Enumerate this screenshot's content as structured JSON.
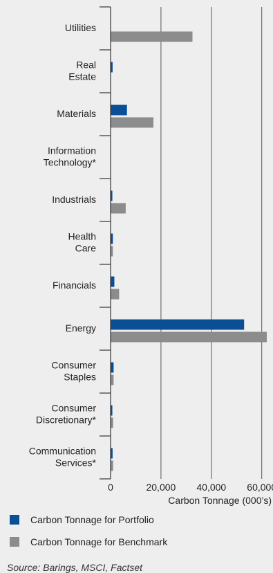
{
  "chart_data": {
    "type": "bar",
    "orientation": "horizontal",
    "categories": [
      "Utilities",
      "Real Estate",
      "Materials",
      "Information Technology*",
      "Industrials",
      "Health Care",
      "Financials",
      "Energy",
      "Consumer Staples",
      "Consumer Discretionary*",
      "Communication Services*"
    ],
    "category_lines": [
      [
        "Utilities"
      ],
      [
        "Real",
        "Estate"
      ],
      [
        "Materials"
      ],
      [
        "Information",
        "Technology*"
      ],
      [
        "Industrials"
      ],
      [
        "Health",
        "Care"
      ],
      [
        "Financials"
      ],
      [
        "Energy"
      ],
      [
        "Consumer",
        "Staples"
      ],
      [
        "Consumer",
        "Discretionary*"
      ],
      [
        "Communication",
        "Services*"
      ]
    ],
    "series": [
      {
        "name": "Carbon Tonnage for Portfolio",
        "color": "#0a4f96",
        "values": [
          0,
          800,
          6500,
          0,
          700,
          900,
          1500,
          53000,
          1200,
          700,
          800
        ]
      },
      {
        "name": "Carbon Tonnage for Benchmark",
        "color": "#8c8c8c",
        "values": [
          32500,
          0,
          17000,
          0,
          6000,
          900,
          3400,
          62000,
          1200,
          1000,
          1000
        ]
      }
    ],
    "xlim": [
      0,
      62000
    ],
    "xticks": [
      0,
      20000,
      40000,
      60000
    ],
    "xtick_labels": [
      "0",
      "20,000",
      "40,000",
      "60,000"
    ],
    "xlabel": "Carbon Tonnage (000’s)",
    "ylabel": "",
    "grid": "vertical",
    "legend_position": "bottom"
  },
  "legend": {
    "portfolio_label": "Carbon Tonnage for Portfolio",
    "benchmark_label": "Carbon Tonnage for Benchmark"
  },
  "source": "Source: Barings, MSCI, Factset"
}
